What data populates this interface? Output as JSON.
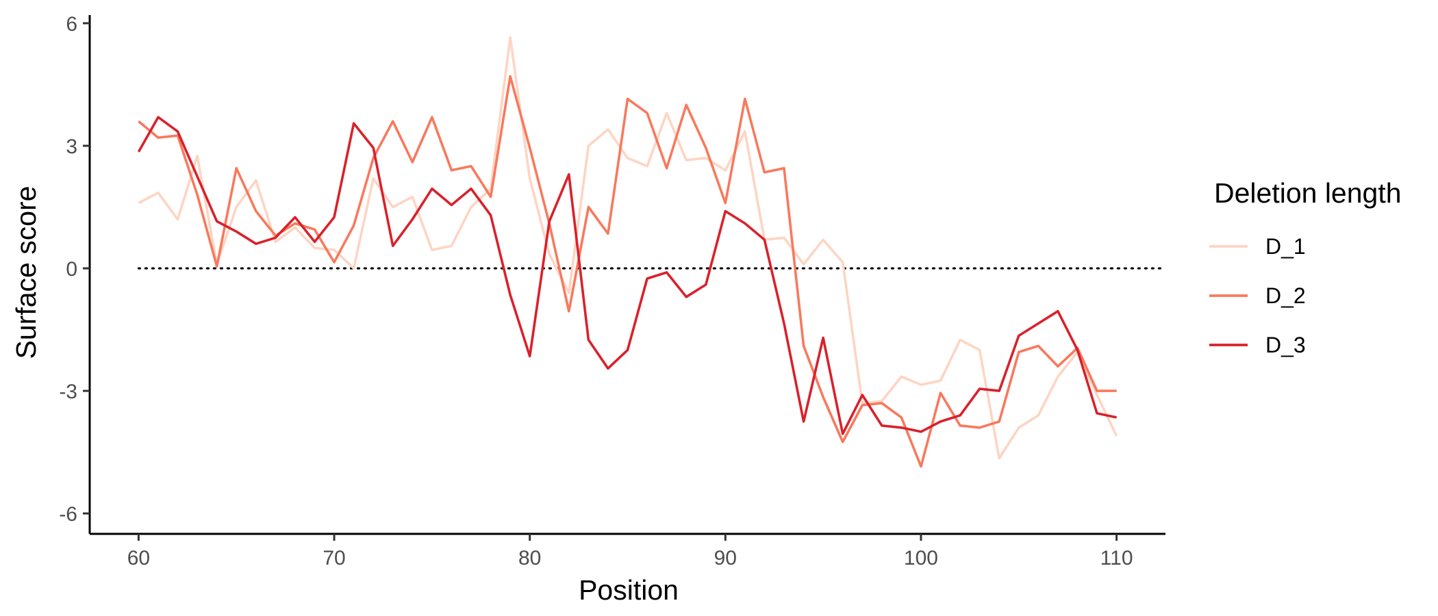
{
  "chart_data": {
    "type": "line",
    "xlabel": "Position",
    "ylabel": "Surface score",
    "xlim": [
      57.5,
      112.5
    ],
    "ylim": [
      -6.5,
      6.2
    ],
    "x_ticks": [
      60,
      70,
      80,
      90,
      100,
      110
    ],
    "x_tick_labels": [
      "60",
      "70",
      "80",
      "90",
      "100",
      "110"
    ],
    "y_ticks": [
      -6,
      -3,
      0,
      3,
      6
    ],
    "y_tick_labels": [
      "-6",
      "-3",
      "0",
      "3",
      "6"
    ],
    "grid": false,
    "reference_line": {
      "y": 0,
      "style": "dotted"
    },
    "legend": {
      "title": "Deletion length",
      "placement": "right"
    },
    "x": [
      60,
      61,
      62,
      63,
      64,
      65,
      66,
      67,
      68,
      69,
      70,
      71,
      72,
      73,
      74,
      75,
      76,
      77,
      78,
      79,
      80,
      81,
      82,
      83,
      84,
      85,
      86,
      87,
      88,
      89,
      90,
      91,
      92,
      93,
      94,
      95,
      96,
      97,
      98,
      99,
      100,
      101,
      102,
      103,
      104,
      105,
      106,
      107,
      108,
      109,
      110
    ],
    "series": [
      {
        "name": "D_1",
        "color": "#fdd5c3",
        "values": [
          1.6,
          1.85,
          1.2,
          2.75,
          0.1,
          1.5,
          2.15,
          0.65,
          1.0,
          0.5,
          0.45,
          0.0,
          2.2,
          1.5,
          1.75,
          0.45,
          0.55,
          1.5,
          1.95,
          5.65,
          2.2,
          0.35,
          -0.6,
          3.0,
          3.4,
          2.7,
          2.5,
          3.8,
          2.65,
          2.7,
          2.4,
          3.35,
          0.7,
          0.75,
          0.1,
          0.7,
          0.15,
          -3.3,
          -3.25,
          -2.65,
          -2.85,
          -2.75,
          -1.75,
          -2.0,
          -4.65,
          -3.9,
          -3.6,
          -2.65,
          -2.05,
          -3.1,
          -4.1
        ]
      },
      {
        "name": "D_2",
        "color": "#f8795d",
        "values": [
          3.6,
          3.2,
          3.25,
          1.8,
          0.05,
          2.45,
          1.4,
          0.8,
          1.1,
          0.95,
          0.15,
          1.05,
          2.7,
          3.6,
          2.6,
          3.7,
          2.4,
          2.5,
          1.75,
          4.7,
          2.95,
          1.1,
          -1.05,
          1.5,
          0.85,
          4.15,
          3.8,
          2.45,
          4.0,
          2.95,
          1.6,
          4.15,
          2.35,
          2.45,
          -1.9,
          -3.15,
          -4.25,
          -3.35,
          -3.3,
          -3.65,
          -4.85,
          -3.05,
          -3.85,
          -3.9,
          -3.75,
          -2.05,
          -1.9,
          -2.4,
          -1.95,
          -3.0,
          -3.0
        ]
      },
      {
        "name": "D_3",
        "color": "#d9212b",
        "values": [
          2.85,
          3.7,
          3.35,
          2.25,
          1.15,
          0.9,
          0.6,
          0.75,
          1.25,
          0.65,
          1.25,
          3.55,
          2.95,
          0.55,
          1.2,
          1.95,
          1.55,
          1.95,
          1.3,
          -0.65,
          -2.15,
          1.15,
          2.3,
          -1.75,
          -2.45,
          -2.0,
          -0.25,
          -0.1,
          -0.7,
          -0.4,
          1.4,
          1.1,
          0.7,
          -1.35,
          -3.75,
          -1.7,
          -4.05,
          -3.1,
          -3.85,
          -3.9,
          -4.0,
          -3.75,
          -3.6,
          -2.95,
          -3.0,
          -1.65,
          -1.35,
          -1.05,
          -2.0,
          -3.55,
          -3.65
        ]
      }
    ]
  }
}
